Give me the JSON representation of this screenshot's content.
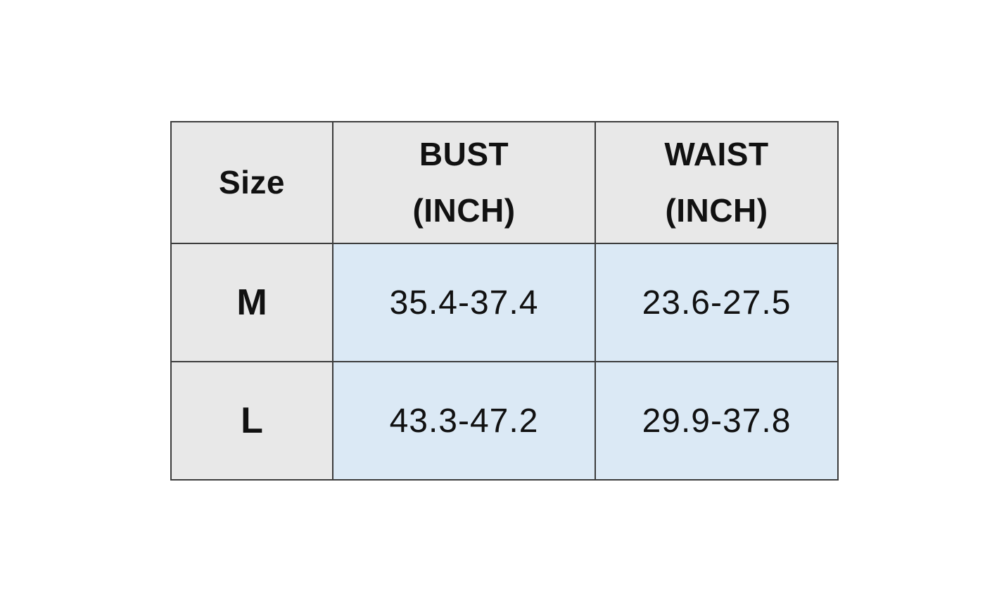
{
  "theme": {
    "page-bg": "#ffffff",
    "header-bg": "#e8e8e8",
    "label-col-bg": "#e8e8e8",
    "data-cell-bg": "#dbe9f5",
    "border-color": "#3c3c3c",
    "text-color": "#111111"
  },
  "table": {
    "headers": {
      "size": "Size",
      "bust": "BUST\n(INCH)",
      "waist": "WAIST\n(INCH)"
    },
    "rows": [
      {
        "size": "M",
        "bust": "35.4-37.4",
        "waist": "23.6-27.5"
      },
      {
        "size": "L",
        "bust": "43.3-47.2",
        "waist": "29.9-37.8"
      }
    ]
  },
  "chart_data": {
    "type": "table",
    "title": "",
    "columns": [
      "Size",
      "BUST (INCH)",
      "WAIST (INCH)"
    ],
    "rows": [
      [
        "M",
        "35.4-37.4",
        "23.6-27.5"
      ],
      [
        "L",
        "43.3-47.2",
        "29.9-37.8"
      ]
    ]
  }
}
